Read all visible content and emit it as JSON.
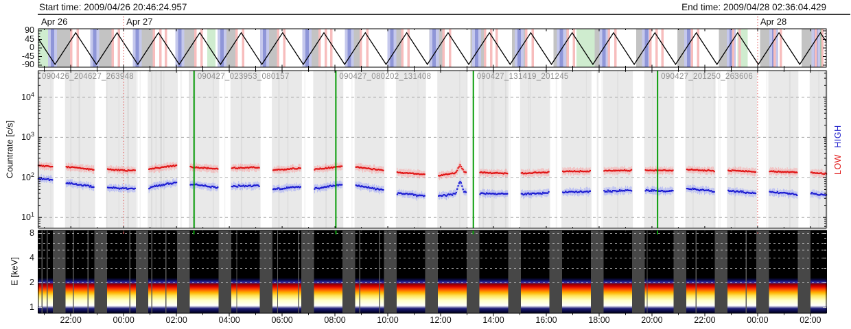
{
  "header": {
    "start_time_label": "Start time: 2009/04/26 20:46:24.957",
    "end_time_label": "End time: 2009/04/28 02:36:04.429"
  },
  "date_labels": [
    {
      "text": "Apr 26",
      "hour": 20.774
    },
    {
      "text": "Apr 27",
      "hour": 24.0
    },
    {
      "text": "Apr 28",
      "hour": 48.0
    }
  ],
  "x_axis": {
    "tick_hours": [
      22,
      24,
      26,
      28,
      30,
      32,
      34,
      36,
      38,
      40,
      42,
      44,
      46,
      48,
      50
    ],
    "tick_labels": [
      "22:00",
      "00:00",
      "02:00",
      "04:00",
      "06:00",
      "08:00",
      "10:00",
      "12:00",
      "14:00",
      "16:00",
      "18:00",
      "20:00",
      "22:00",
      "00:00",
      "02:00"
    ]
  },
  "panels": {
    "pointing": {
      "y_tick_labels": [
        "90",
        "45",
        "0",
        "-45",
        "-90"
      ],
      "y_tick_values": [
        90,
        45,
        0,
        -45,
        -90
      ]
    },
    "countrate": {
      "title": "Countrate [c/s]",
      "y_tick_exponents": [
        4,
        3,
        2,
        1
      ],
      "legend": {
        "high_label": "HIGH",
        "high_color": "#2525cc",
        "low_label": "LOW",
        "low_color": "#e01414"
      }
    },
    "spectrogram": {
      "title": "E [keV]",
      "y_tick_labels": [
        "8",
        "4",
        "2",
        "1"
      ],
      "y_tick_values": [
        8,
        4,
        2,
        1
      ]
    }
  },
  "file_segments": [
    {
      "label": "090426_204627_263948",
      "start_hour": 20.774
    },
    {
      "label": "090427_023953_080157",
      "start_hour": 26.6647
    },
    {
      "label": "090427_080202_131408",
      "start_hour": 32.0339
    },
    {
      "label": "090427_131419_201245",
      "start_hour": 37.2386
    },
    {
      "label": "090427_201250_263606",
      "start_hour": 44.2139
    }
  ],
  "midnight_hours": [
    24,
    48
  ],
  "colors": {
    "low_series": "#e01414",
    "high_series": "#1b1bd0",
    "segment_boundary_line": "#069b06",
    "midnight_line": "#e05252",
    "file_label_text": "#8f8f8f",
    "night_band_gray": "#c3c3c3",
    "saa_band_blue": "#8f96d8",
    "flare_stripe_pink": "#f7bdbd",
    "green_band_light": "#cfeccf",
    "green_band_dark": "#7fc87f",
    "day_shading_gray": "#e9e9e9",
    "spectrogram_background": "#474747"
  },
  "chart_data": {
    "type": "multi-panel-timeseries",
    "time_axis": {
      "start_hour": 20.774,
      "end_hour": 50.601,
      "hours_reference": "hours since 2009/04/26 00:00",
      "tick_step_hours": 2
    },
    "pointing_wave": {
      "type": "line",
      "shape": "triangle",
      "period_hours": 1.5662,
      "first_trough_hour": 21.403,
      "min_deg": -86,
      "max_deg": 80,
      "ylim": [
        -100,
        100
      ]
    },
    "pointing_bands": {
      "night_gray_offsets": [
        0.07,
        0.62
      ],
      "saa_blue": {
        "width": 0.34,
        "core_width": 0.13,
        "offset_start": -0.1,
        "offset_per_orbit": 0.04
      },
      "flare_pink": {
        "peak_offsets": [
          -0.17,
          0.07
        ],
        "extra_offset": 0.28,
        "width": 0.09
      },
      "green_light_hours": [
        [
          20.77,
          21.14
        ],
        [
          27.17,
          27.48
        ],
        [
          31.01,
          31.37
        ],
        [
          41.14,
          42.02
        ],
        [
          47.24,
          47.63
        ]
      ],
      "green_dark_hours": [
        [
          29.4,
          29.66
        ],
        [
          50.12,
          50.41
        ]
      ]
    },
    "countrate": {
      "type": "scatter",
      "ylabel": "Countrate [c/s]",
      "ylog": true,
      "ylim": [
        5.4,
        46000
      ],
      "grid_decades": [
        1,
        2,
        3,
        4
      ],
      "series": [
        {
          "name": "LOW",
          "color": "#e01414",
          "unit": "c/s"
        },
        {
          "name": "HIGH",
          "color": "#1b1bd0",
          "unit": "c/s"
        }
      ],
      "day_segments": [
        {
          "t0": 20.774,
          "t1": 21.299,
          "low": [
            196,
            190
          ],
          "high": [
            92,
            87
          ]
        },
        {
          "t0": 21.831,
          "t1": 22.865,
          "low": [
            185,
            155
          ],
          "high": [
            72,
            58
          ]
        },
        {
          "t0": 23.397,
          "t1": 24.431,
          "low": [
            158,
            148
          ],
          "high": [
            55,
            52
          ]
        },
        {
          "t0": 24.963,
          "t1": 25.998,
          "low": [
            160,
            200
          ],
          "high": [
            55,
            75
          ]
        },
        {
          "t0": 26.53,
          "t1": 27.564,
          "low": [
            182,
            162
          ],
          "high": [
            68,
            55
          ]
        },
        {
          "t0": 28.096,
          "t1": 29.13,
          "low": [
            170,
            178
          ],
          "high": [
            60,
            62
          ]
        },
        {
          "t0": 29.662,
          "t1": 30.696,
          "low": [
            152,
            168
          ],
          "high": [
            50,
            58
          ]
        },
        {
          "t0": 31.228,
          "t1": 32.263,
          "low": [
            158,
            188
          ],
          "high": [
            52,
            66
          ]
        },
        {
          "t0": 32.795,
          "t1": 33.829,
          "low": [
            180,
            152
          ],
          "high": [
            62,
            48
          ]
        },
        {
          "t0": 34.361,
          "t1": 35.395,
          "low": [
            133,
            118
          ],
          "high": [
            40,
            34
          ]
        },
        {
          "t0": 35.927,
          "t1": 36.961,
          "low": [
            112,
            138
          ],
          "high": [
            34,
            42
          ],
          "bump": true
        },
        {
          "t0": 37.493,
          "t1": 38.528,
          "low": [
            132,
            127
          ],
          "high": [
            40,
            38
          ]
        },
        {
          "t0": 39.06,
          "t1": 40.094,
          "low": [
            127,
            134
          ],
          "high": [
            38,
            41
          ]
        },
        {
          "t0": 40.626,
          "t1": 41.66,
          "low": [
            140,
            142
          ],
          "high": [
            43,
            44
          ]
        },
        {
          "t0": 42.192,
          "t1": 43.226,
          "low": [
            146,
            148
          ],
          "high": [
            45,
            47
          ]
        },
        {
          "t0": 43.758,
          "t1": 44.793,
          "low": [
            152,
            147
          ],
          "high": [
            48,
            45
          ]
        },
        {
          "t0": 45.325,
          "t1": 46.359,
          "low": [
            157,
            145
          ],
          "high": [
            52,
            44
          ]
        },
        {
          "t0": 46.891,
          "t1": 47.925,
          "low": [
            150,
            138
          ],
          "high": [
            47,
            40
          ]
        },
        {
          "t0": 48.457,
          "t1": 49.491,
          "low": [
            142,
            132
          ],
          "high": [
            44,
            37
          ]
        },
        {
          "t0": 50.023,
          "t1": 50.601,
          "low": [
            130,
            124
          ],
          "high": [
            40,
            36
          ]
        }
      ]
    },
    "spectrogram": {
      "type": "heatmap",
      "ylabel": "E [keV]",
      "ylog2": true,
      "ylim_keV": [
        0.85,
        9.3
      ],
      "emission_stops": [
        [
          0.86,
          "#000020"
        ],
        [
          0.97,
          "#1c1c7a"
        ],
        [
          1.05,
          "#ffffff"
        ],
        [
          1.22,
          "#ffffc8"
        ],
        [
          1.38,
          "#ffe860"
        ],
        [
          1.52,
          "#ffb000"
        ],
        [
          1.66,
          "#ff5000"
        ],
        [
          1.8,
          "#d80000"
        ],
        [
          1.92,
          "#8c0000"
        ],
        [
          2.02,
          "#3030b0"
        ],
        [
          2.12,
          "#101060"
        ],
        [
          2.3,
          "#000000"
        ]
      ],
      "gridline_energies": [
        2,
        3,
        4,
        5,
        6,
        8
      ]
    }
  }
}
